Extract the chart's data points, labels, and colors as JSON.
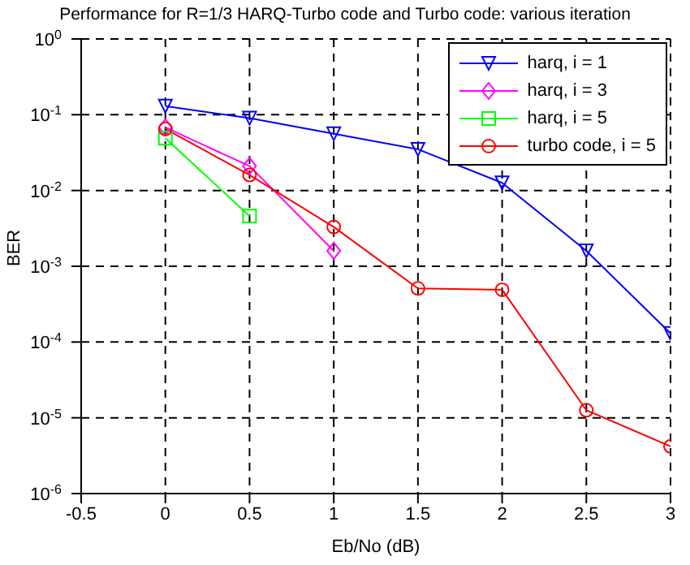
{
  "chart_data": {
    "type": "line",
    "title": "Performance for R=1/3 HARQ-Turbo code and Turbo code: various iteration",
    "xlabel": "Eb/No (dB)",
    "ylabel": "BER",
    "log": "y",
    "grid": true,
    "legend": "top right",
    "line_style": "solid",
    "x": [
      0,
      0.5,
      1,
      1.5,
      2,
      2.5,
      3
    ],
    "xlim": [
      -0.5,
      3
    ],
    "xticks": [
      -0.5,
      0,
      0.5,
      1,
      1.5,
      2,
      2.5,
      3
    ],
    "ylim": [
      1e-06,
      1
    ],
    "yticks": [
      {
        "value": 1e-06,
        "label": "10$^{-6}$"
      },
      {
        "value": 1e-05,
        "label": "10$^{-5}$"
      },
      {
        "value": 0.0001,
        "label": "10$^{-4}$"
      },
      {
        "value": 0.001,
        "label": "10$^{-3}$"
      },
      {
        "value": 0.01,
        "label": "10$^{-2}$"
      },
      {
        "value": 0.1,
        "label": "10$^{-1}$"
      },
      {
        "value": 1,
        "label": "10$^{0}$"
      }
    ],
    "series": [
      {
        "name": "harq, i = 1",
        "color": "#0000ff",
        "marker": "triangle",
        "values": [
          0.13,
          0.09,
          0.056,
          0.035,
          0.0126,
          0.0016,
          0.00013
        ]
      },
      {
        "name": "harq, i = 3",
        "color": "#ff00ff",
        "marker": "diamond",
        "values": [
          0.068,
          0.021,
          0.0016,
          null,
          null,
          null,
          null
        ]
      },
      {
        "name": "harq, i = 5",
        "color": "#00ff00",
        "marker": "square",
        "values": [
          0.049,
          0.0046,
          null,
          null,
          null,
          null,
          null
        ]
      },
      {
        "name": "turbo code, i = 5",
        "color": "#ff0000",
        "marker": "circle",
        "values": [
          0.065,
          0.016,
          0.0033,
          0.00051,
          0.00049,
          1.26e-05,
          4.2e-06
        ]
      }
    ]
  }
}
